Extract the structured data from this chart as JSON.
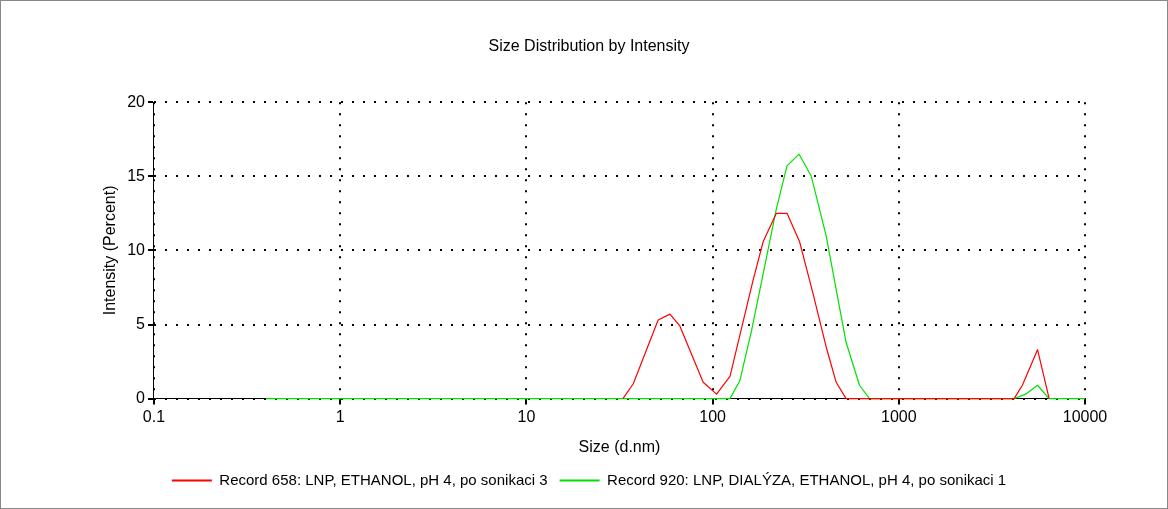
{
  "chart_data": {
    "type": "line",
    "title": "Size Distribution by Intensity",
    "xlabel": "Size (d.nm)",
    "ylabel": "Intensity (Percent)",
    "log": "x",
    "xlim": [
      0.1,
      10000
    ],
    "xticks": [
      0.1,
      1,
      10,
      100,
      1000,
      10000
    ],
    "ylim": [
      0,
      20
    ],
    "yticks": [
      0,
      5,
      10,
      15,
      20
    ],
    "grid": true,
    "legend": "bottom",
    "marker": "none",
    "line_style": "solid",
    "series": [
      {
        "name": "Record 658: LNP, ETHANOL, pH 4, po sonikaci 3",
        "color": "#ff0000",
        "x": [
          33,
          37.5,
          51,
          59,
          66.7,
          89,
          105,
          124,
          165,
          187,
          220,
          251,
          293,
          346,
          407,
          461,
          521,
          4160,
          4610,
          5560,
          6420
        ],
        "values": [
          0,
          1.0,
          5.3,
          5.7,
          4.9,
          1.1,
          0.3,
          1.5,
          8.0,
          10.6,
          12.5,
          12.5,
          10.6,
          7.1,
          3.5,
          1.1,
          0,
          0,
          0.9,
          3.3,
          0
        ]
      },
      {
        "name": "Record 920: LNP, DIALÝZA, ETHANOL, pH 4, po sonikaci 1",
        "color": "#00e000",
        "x": [
          0.4,
          124,
          140,
          162,
          220,
          251,
          291,
          339,
          407,
          521,
          615,
          696,
          4160,
          4800,
          5560,
          6420,
          10000
        ],
        "values": [
          0,
          0,
          1.2,
          4.6,
          12.8,
          15.7,
          16.5,
          15.0,
          11.0,
          3.8,
          0.9,
          0,
          0,
          0.3,
          0.9,
          0,
          0
        ]
      }
    ]
  }
}
